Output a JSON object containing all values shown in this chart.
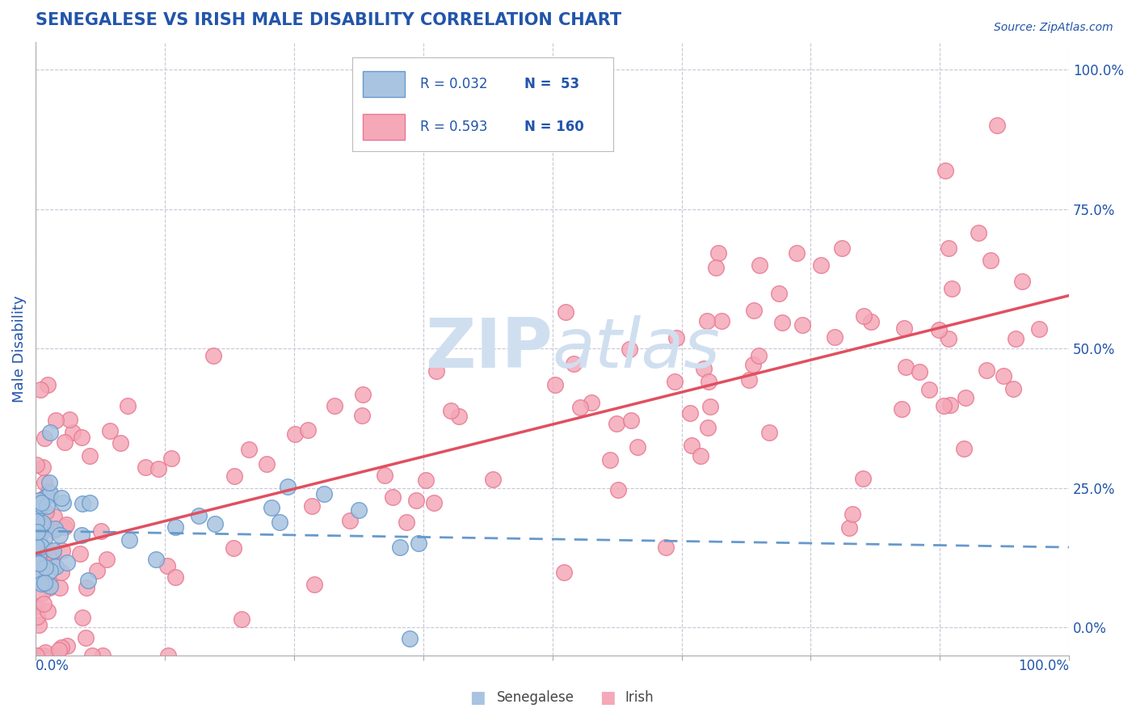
{
  "title": "SENEGALESE VS IRISH MALE DISABILITY CORRELATION CHART",
  "source_text": "Source: ZipAtlas.com",
  "ylabel": "Male Disability",
  "x_min": 0.0,
  "x_max": 1.0,
  "y_min": -0.05,
  "y_max": 1.05,
  "right_yticks": [
    0.0,
    0.25,
    0.5,
    0.75,
    1.0
  ],
  "right_yticklabels": [
    "0.0%",
    "25.0%",
    "50.0%",
    "75.0%",
    "100.0%"
  ],
  "legend_R1": "R = 0.032",
  "legend_N1": "N =  53",
  "legend_R2": "R = 0.593",
  "legend_N2": "N = 160",
  "senegalese_color": "#a8c4e0",
  "senegalese_edge": "#6699cc",
  "irish_color": "#f4a8b8",
  "irish_edge": "#e87890",
  "trend_senegalese_color": "#6699cc",
  "trend_irish_color": "#e05060",
  "title_color": "#2255aa",
  "axis_label_color": "#2255aa",
  "tick_label_color": "#2255aa",
  "grid_color": "#c8c8d8",
  "background_color": "#ffffff",
  "watermark_zip": "ZIP",
  "watermark_atlas": "atlas",
  "watermark_color": "#d0dff0"
}
